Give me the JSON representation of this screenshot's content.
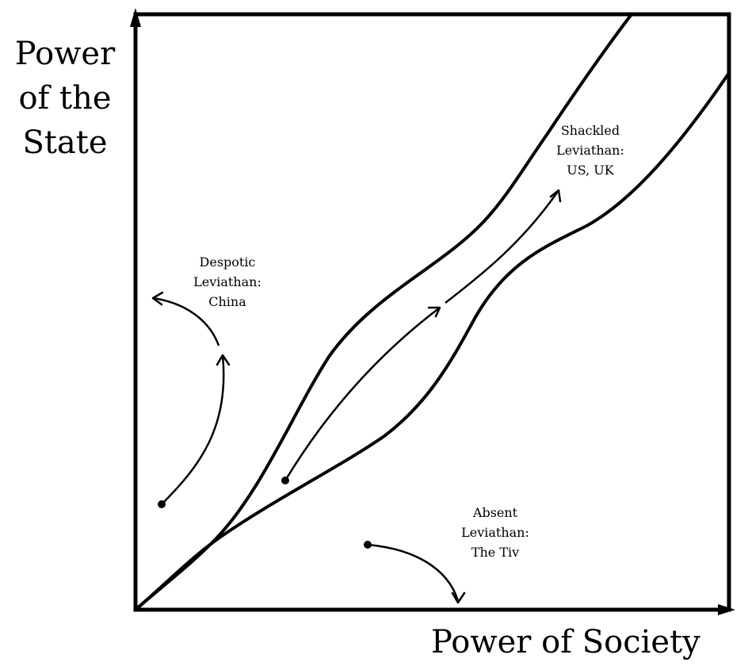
{
  "axes": {
    "y_title_lines": [
      "Power",
      "of the",
      "State"
    ],
    "x_title": "Power of Society"
  },
  "regions": {
    "shackled": {
      "lines": [
        "Shackled",
        "Leviathan:",
        "US, UK"
      ]
    },
    "despotic": {
      "lines": [
        "Despotic",
        "Leviathan:",
        "China"
      ]
    },
    "absent": {
      "lines": [
        "Absent",
        "Leviathan:",
        "The Tiv"
      ]
    }
  },
  "colors": {
    "ink": "#000000",
    "background": "#ffffff"
  }
}
